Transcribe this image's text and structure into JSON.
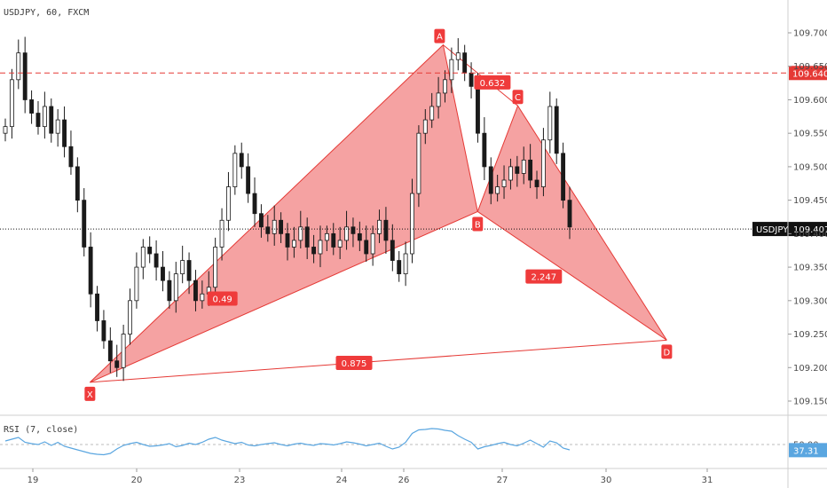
{
  "header": {
    "symbol_line": "USDJPY, 60, FXCM"
  },
  "rsi_panel": {
    "label": "RSI (7, close)",
    "level_label": "50.00",
    "value": "37.31"
  },
  "price_tags": {
    "ask_line": "109.640",
    "ticker": "USDJPY",
    "last": "109.407"
  },
  "colors": {
    "pattern_fill": "#f28b8b",
    "pattern_stroke": "#e53935",
    "label_bg": "#ef3b3b",
    "candle": "#1a1a1a",
    "rsi_line": "#5aa6e0",
    "ask_tag": "#e53935",
    "last_tag": "#111111"
  },
  "chart_data": {
    "type": "candlestick",
    "symbol": "USDJPY",
    "timeframe": "60",
    "source": "FXCM",
    "y_ticks": [
      109.7,
      109.65,
      109.6,
      109.55,
      109.5,
      109.45,
      109.4,
      109.35,
      109.3,
      109.25,
      109.2,
      109.15
    ],
    "y_tick_labels": [
      "109.700",
      "109.650",
      "109.600",
      "109.550",
      "109.500",
      "109.450",
      "109.400",
      "109.350",
      "109.300",
      "109.250",
      "109.200",
      "109.150"
    ],
    "x_ticks": [
      19,
      20,
      23,
      24,
      26,
      27,
      30,
      31
    ],
    "x_tick_labels": [
      "19",
      "20",
      "23",
      "24",
      "26",
      "27",
      "30",
      "31"
    ],
    "horizontal_lines": [
      {
        "name": "ask",
        "price": 109.64,
        "style": "dashed",
        "color": "#e53935"
      },
      {
        "name": "last",
        "price": 109.407,
        "style": "dotted",
        "color": "#111111"
      }
    ],
    "pattern_points": [
      {
        "label": "X",
        "x": 19.55,
        "price": 109.178
      },
      {
        "label": "A",
        "x": 26.4,
        "price": 109.682
      },
      {
        "label": "B",
        "x": 26.75,
        "price": 109.433
      },
      {
        "label": "C",
        "x": 27.45,
        "price": 109.591
      },
      {
        "label": "D",
        "x": 30.6,
        "price": 109.241
      }
    ],
    "pattern_ratios": [
      {
        "text": "0.49",
        "x": 22.5,
        "price": 109.303
      },
      {
        "text": "0.632",
        "x": 26.9,
        "price": 109.626
      },
      {
        "text": "2.247",
        "x": 28.2,
        "price": 109.336
      },
      {
        "text": "0.875",
        "x": 24.4,
        "price": 109.207
      }
    ],
    "candle_closes": [
      109.56,
      109.63,
      109.67,
      109.6,
      109.58,
      109.56,
      109.59,
      109.55,
      109.57,
      109.53,
      109.5,
      109.45,
      109.38,
      109.31,
      109.27,
      109.24,
      109.21,
      109.2,
      109.25,
      109.3,
      109.35,
      109.38,
      109.37,
      109.35,
      109.33,
      109.3,
      109.34,
      109.36,
      109.33,
      109.3,
      109.31,
      109.32,
      109.38,
      109.42,
      109.47,
      109.52,
      109.5,
      109.46,
      109.43,
      109.41,
      109.4,
      109.42,
      109.4,
      109.38,
      109.39,
      109.41,
      109.38,
      109.37,
      109.39,
      109.4,
      109.38,
      109.39,
      109.41,
      109.4,
      109.39,
      109.37,
      109.4,
      109.42,
      109.39,
      109.36,
      109.34,
      109.37,
      109.46,
      109.55,
      109.57,
      109.59,
      109.61,
      109.63,
      109.66,
      109.67,
      109.64,
      109.62,
      109.55,
      109.5,
      109.46,
      109.47,
      109.48,
      109.5,
      109.49,
      109.51,
      109.48,
      109.47,
      109.54,
      109.59,
      109.52,
      109.45,
      109.41
    ],
    "rsi": {
      "period": 7,
      "source": "close",
      "last": 37.31,
      "level": 50.0,
      "values": [
        58,
        62,
        66,
        55,
        52,
        50,
        56,
        48,
        55,
        46,
        42,
        38,
        34,
        30,
        28,
        27,
        30,
        40,
        48,
        52,
        55,
        50,
        46,
        47,
        49,
        52,
        45,
        48,
        53,
        50,
        55,
        62,
        66,
        60,
        56,
        52,
        55,
        49,
        47,
        50,
        52,
        54,
        50,
        47,
        51,
        53,
        50,
        48,
        52,
        51,
        49,
        52,
        56,
        54,
        51,
        47,
        50,
        53,
        46,
        40,
        44,
        55,
        75,
        83,
        84,
        86,
        85,
        82,
        80,
        70,
        62,
        55,
        40,
        45,
        48,
        52,
        55,
        50,
        47,
        53,
        60,
        52,
        44,
        58,
        54,
        42,
        38
      ]
    }
  }
}
